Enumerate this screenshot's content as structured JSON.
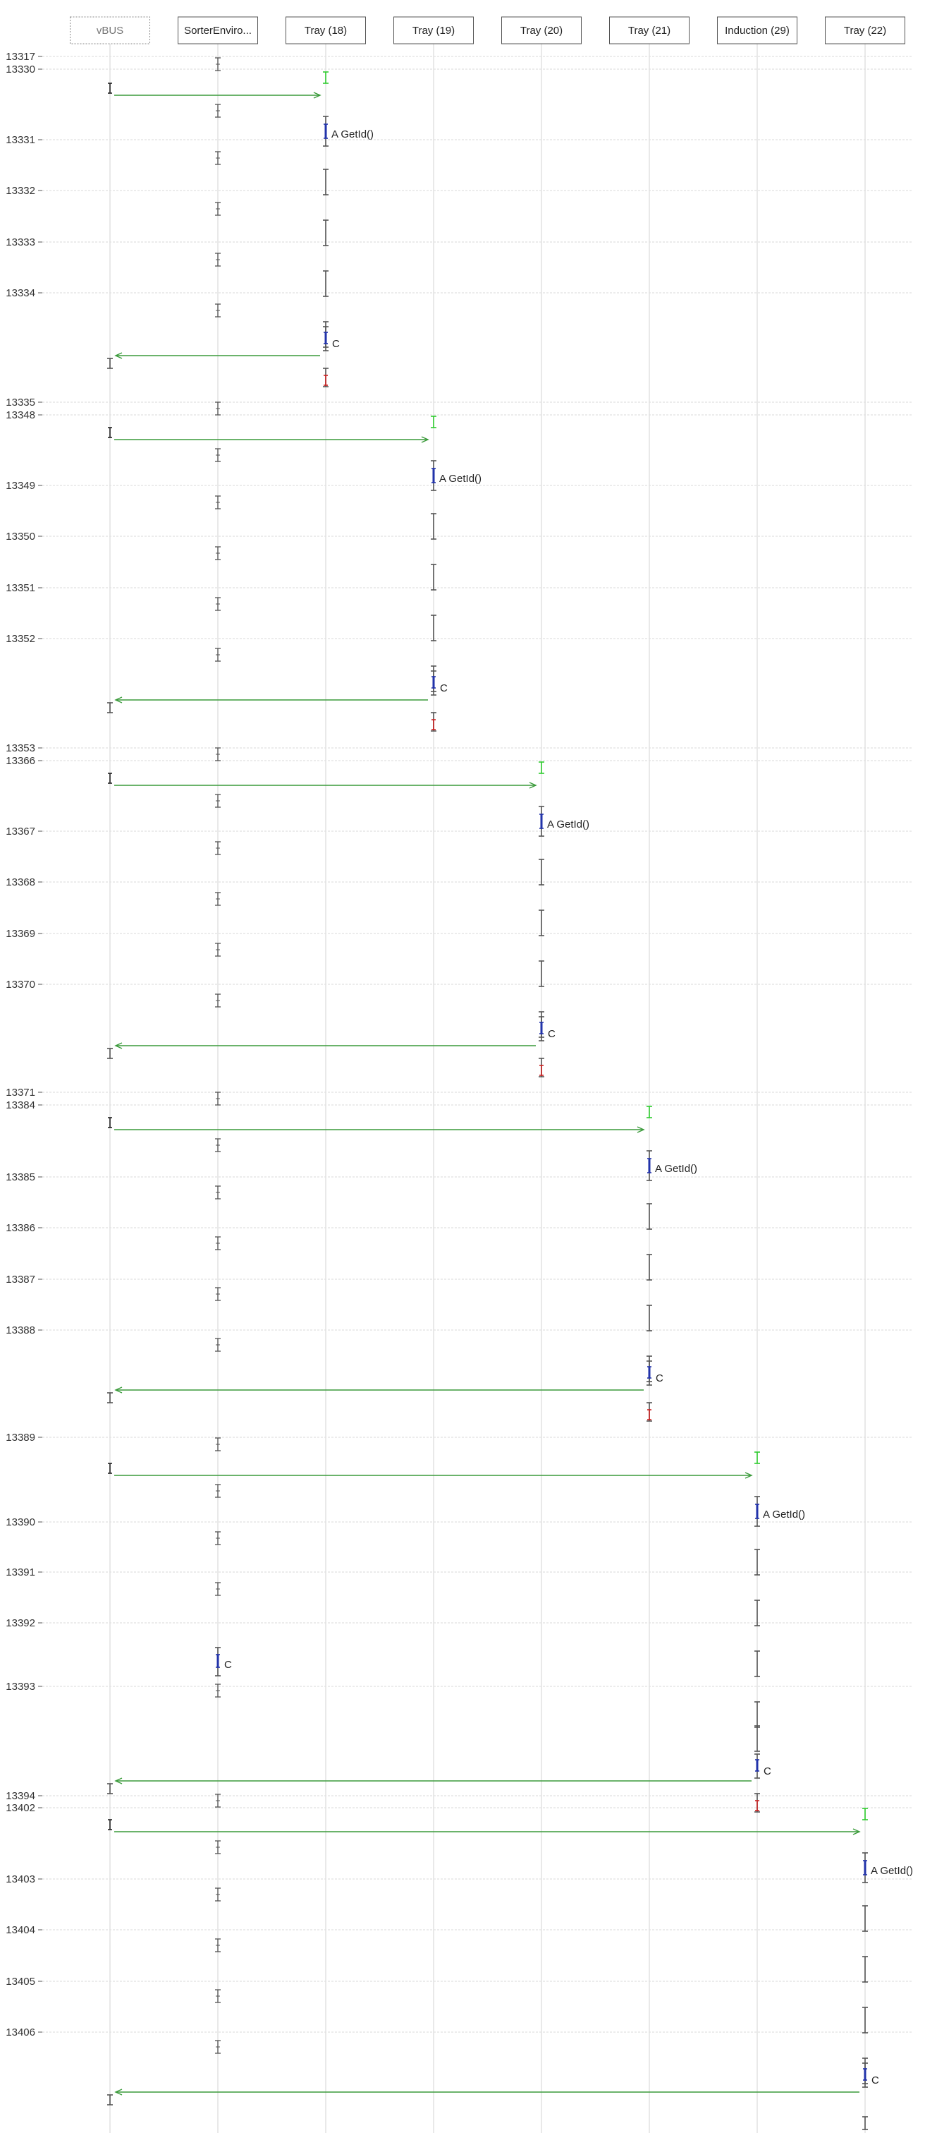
{
  "colors": {
    "green": "#3a9a3a",
    "bright_green": "#2ecc2e",
    "blue": "#2233aa",
    "red": "#cc2222",
    "gray": "#555555",
    "dark": "#222222"
  },
  "lanes": [
    {
      "label": "vBUS",
      "style": "dashed"
    },
    {
      "label": "SorterEnviro...",
      "style": "solid"
    },
    {
      "label": "Tray (18)",
      "style": "solid"
    },
    {
      "label": "Tray (19)",
      "style": "solid"
    },
    {
      "label": "Tray (20)",
      "style": "solid"
    },
    {
      "label": "Tray (21)",
      "style": "solid"
    },
    {
      "label": "Induction (29)",
      "style": "solid"
    },
    {
      "label": "Tray (22)",
      "style": "solid"
    }
  ],
  "time_ticks": [
    "13317",
    "13330",
    "13331",
    "13332",
    "13333",
    "13334",
    "13335",
    "13348",
    "13349",
    "13350",
    "13351",
    "13352",
    "13353",
    "13366",
    "13367",
    "13368",
    "13369",
    "13370",
    "13371",
    "13384",
    "13385",
    "13386",
    "13387",
    "13388",
    "13389",
    "13390",
    "13391",
    "13392",
    "13393",
    "13394",
    "13402",
    "13403",
    "13404",
    "13405",
    "13406"
  ],
  "annotations": {
    "getid": "A GetId()",
    "complete": "C"
  },
  "blocks": [
    {
      "lane": 2,
      "getid": true,
      "c_on_lane": 2,
      "red": true
    },
    {
      "lane": 3,
      "getid": true,
      "c_on_lane": 3,
      "red": true
    },
    {
      "lane": 4,
      "getid": true,
      "c_on_lane": 4,
      "red": true
    },
    {
      "lane": 5,
      "getid": true,
      "c_on_lane": 5,
      "red": true
    },
    {
      "lane": 6,
      "getid": true,
      "c_on_lane": 1,
      "c_also": 6,
      "red": true
    },
    {
      "lane": 7,
      "getid": true,
      "c_on_lane": 7,
      "red": false
    }
  ]
}
